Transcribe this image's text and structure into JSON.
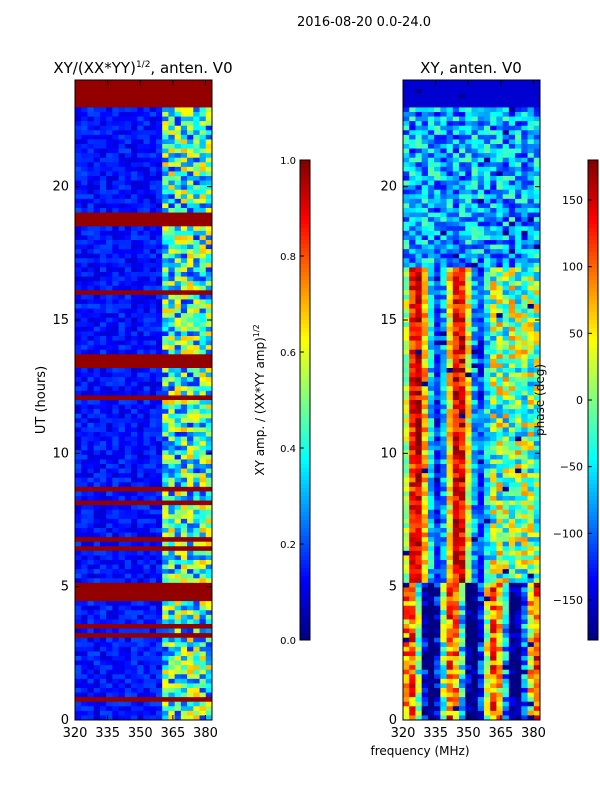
{
  "suptitle": "2016-08-20 0.0-24.0",
  "xlabel": "frequency (MHz)",
  "colors": {
    "background": "#ffffff",
    "axes": "#000000",
    "low": "#00007f",
    "high": "#7f0000"
  },
  "chart_data": [
    {
      "type": "heatmap",
      "title_main": "XY/(XX*YY)",
      "title_sup": "1/2",
      "title_tail": ", anten. V0",
      "ylabel": "UT (hours)",
      "x_ticks": [
        320,
        335,
        350,
        365,
        380
      ],
      "y_ticks": [
        0,
        5,
        10,
        15,
        20
      ],
      "xlim": [
        320,
        383
      ],
      "ylim": [
        0,
        24
      ],
      "colorbar": {
        "label": "XY amp. / (XX*YY amp)",
        "label_sup": "1/2",
        "ticks": [
          "0.0",
          "0.2",
          "0.4",
          "0.6",
          "0.8",
          "1.0"
        ],
        "range": [
          0,
          1
        ]
      },
      "bands": [
        {
          "x0": 320,
          "x1": 360,
          "pattern": "low"
        },
        {
          "x0": 360,
          "x1": 383,
          "pattern": "mixed"
        }
      ],
      "flagged_hours": [
        [
          23.0,
          24.0
        ],
        [
          18.6,
          19.0
        ],
        [
          16.0,
          16.15
        ],
        [
          5.0,
          5.2
        ],
        [
          4.6,
          4.75
        ],
        [
          3.4,
          3.5
        ],
        [
          0.7,
          0.8
        ]
      ]
    },
    {
      "type": "heatmap",
      "title_main": "XY, anten. V0",
      "ylabel": "",
      "x_ticks": [
        320,
        335,
        350,
        365,
        380
      ],
      "y_ticks": [
        0,
        5,
        10,
        15,
        20
      ],
      "xlim": [
        320,
        383
      ],
      "ylim": [
        0,
        24
      ],
      "colorbar": {
        "label": "phase (deg)",
        "ticks": [
          "−150",
          "−100",
          "−50",
          "0",
          "50",
          "100",
          "150"
        ],
        "tick_values": [
          -150,
          -100,
          -50,
          0,
          50,
          100,
          150
        ],
        "range": [
          -180,
          180
        ]
      },
      "regimes": [
        {
          "y0": 23.0,
          "y1": 24.0,
          "pattern": "dark"
        },
        {
          "y0": 17.0,
          "y1": 23.0,
          "pattern": "blue-noise"
        },
        {
          "y0": 5.2,
          "y1": 17.0,
          "pattern": "stripes"
        },
        {
          "y0": 0.0,
          "y1": 5.2,
          "pattern": "mixed"
        }
      ]
    }
  ]
}
